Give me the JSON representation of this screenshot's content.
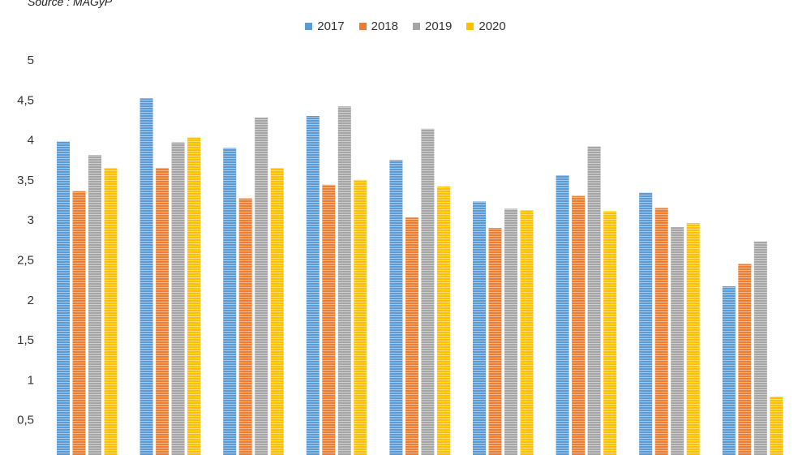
{
  "source_text": "Source : MAGyP",
  "chart_data": {
    "type": "bar",
    "categories": [
      "",
      "",
      "",
      "",
      "",
      "",
      "",
      "",
      ""
    ],
    "series": [
      {
        "name": "2017",
        "color": "#5b9bd5",
        "values": [
          3.98,
          4.52,
          3.9,
          4.3,
          3.75,
          3.23,
          3.56,
          3.34,
          2.17
        ]
      },
      {
        "name": "2018",
        "color": "#ed7d31",
        "values": [
          3.36,
          3.65,
          3.27,
          3.44,
          3.03,
          2.9,
          3.3,
          3.15,
          2.45
        ]
      },
      {
        "name": "2019",
        "color": "#a5a5a5",
        "values": [
          3.81,
          3.97,
          4.28,
          4.42,
          4.14,
          3.14,
          3.92,
          2.91,
          2.73
        ]
      },
      {
        "name": "2020",
        "color": "#ffc000",
        "values": [
          3.65,
          4.03,
          3.65,
          3.5,
          3.42,
          3.12,
          3.11,
          2.96,
          0.79
        ]
      }
    ],
    "yticks": [
      "5",
      "4,5",
      "4",
      "3,5",
      "3",
      "2,5",
      "2",
      "1,5",
      "1",
      "0,5"
    ],
    "ylim": [
      0,
      5
    ],
    "legend_position": "top-center",
    "grid": false
  }
}
